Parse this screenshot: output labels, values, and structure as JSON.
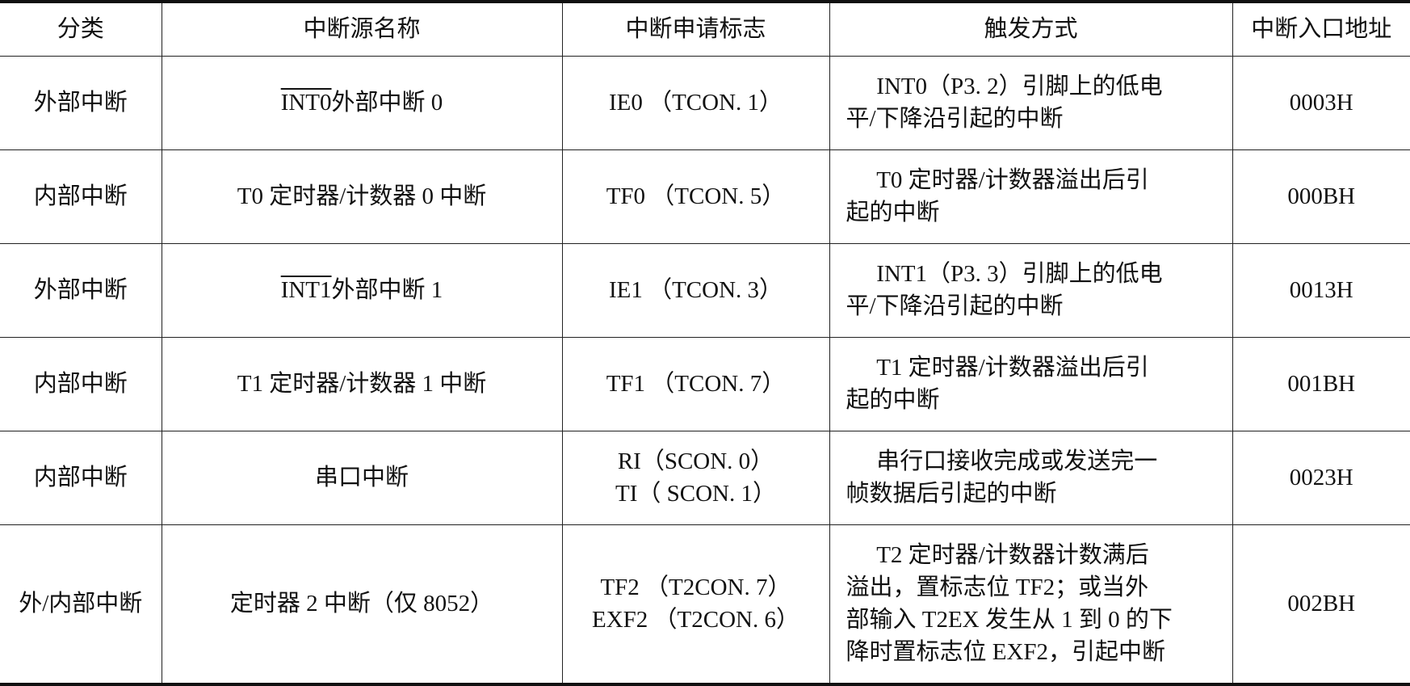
{
  "table": {
    "headers": [
      "分类",
      "中断源名称",
      "中断申请标志",
      "触发方式",
      "中断入口地址"
    ],
    "rows": [
      {
        "category": "外部中断",
        "source_overline": "INT0",
        "source": "外部中断 0",
        "flags": [
          "IE0 （TCON. 1）"
        ],
        "trigger": [
          "INT0（P3. 2）引脚上的低电",
          "平/下降沿引起的中断"
        ],
        "address": "0003H"
      },
      {
        "category": "内部中断",
        "source_overline": "",
        "source": "T0 定时器/计数器 0 中断",
        "flags": [
          "TF0 （TCON. 5）"
        ],
        "trigger": [
          "T0 定时器/计数器溢出后引",
          "起的中断"
        ],
        "address": "000BH"
      },
      {
        "category": "外部中断",
        "source_overline": "INT1",
        "source": "外部中断 1",
        "flags": [
          "IE1 （TCON. 3）"
        ],
        "trigger": [
          "INT1（P3. 3）引脚上的低电",
          "平/下降沿引起的中断"
        ],
        "address": "0013H"
      },
      {
        "category": "内部中断",
        "source_overline": "",
        "source": "T1 定时器/计数器 1 中断",
        "flags": [
          "TF1 （TCON. 7）"
        ],
        "trigger": [
          "T1 定时器/计数器溢出后引",
          "起的中断"
        ],
        "address": "001BH"
      },
      {
        "category": "内部中断",
        "source_overline": "",
        "source": "串口中断",
        "flags": [
          "RI（SCON. 0）",
          "TI（ SCON. 1）"
        ],
        "trigger": [
          "串行口接收完成或发送完一",
          "帧数据后引起的中断"
        ],
        "address": "0023H"
      },
      {
        "category": "外/内部中断",
        "source_overline": "",
        "source": "定时器 2 中断（仅 8052）",
        "flags": [
          "TF2 （T2CON. 7）",
          "EXF2 （T2CON. 6）"
        ],
        "trigger": [
          "T2 定时器/计数器计数满后",
          "溢出，置标志位 TF2；或当外",
          "部输入 T2EX 发生从 1 到 0 的下",
          "降时置标志位 EXF2，引起中断"
        ],
        "address": "002BH"
      }
    ]
  }
}
